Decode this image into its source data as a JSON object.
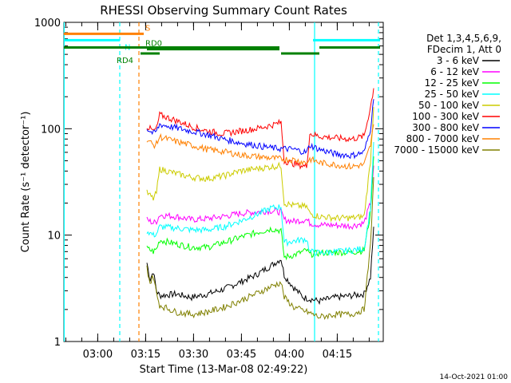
{
  "chart_data": {
    "type": "line",
    "title": "RHESSI Observing Summary Count Rates",
    "xlabel": "Start Time (13-Mar-08 02:49:22)",
    "ylabel": "Count Rate (s⁻¹ detector⁻¹)",
    "y_scale": "log",
    "ylim": [
      1,
      1000
    ],
    "xlim_minutes_after_start": [
      0,
      100
    ],
    "x_ticks": [
      {
        "label": "03:00",
        "min": 10.6
      },
      {
        "label": "03:15",
        "min": 25.6
      },
      {
        "label": "03:30",
        "min": 40.6
      },
      {
        "label": "03:45",
        "min": 55.6
      },
      {
        "label": "04:00",
        "min": 70.6
      },
      {
        "label": "04:15",
        "min": 85.6
      }
    ],
    "y_ticks": [
      {
        "label": "1",
        "value": 1
      },
      {
        "label": "10",
        "value": 10
      },
      {
        "label": "100",
        "value": 100
      },
      {
        "label": "1000",
        "value": 1000
      }
    ],
    "legend": {
      "position": "right",
      "header": [
        "Det 1,3,4,5,6,9,",
        "FDecim 1, Att 0"
      ]
    },
    "series": [
      {
        "name": "3 - 6 keV",
        "color": "#000000",
        "points": [
          [
            26,
            5.5
          ],
          [
            27,
            3.8
          ],
          [
            28,
            4.6
          ],
          [
            29,
            3
          ],
          [
            30,
            2.7
          ],
          [
            35,
            2.8
          ],
          [
            40,
            2.6
          ],
          [
            45,
            2.8
          ],
          [
            50,
            3.1
          ],
          [
            55,
            3.6
          ],
          [
            60,
            4.2
          ],
          [
            65,
            5.2
          ],
          [
            68,
            6
          ],
          [
            69,
            4.2
          ],
          [
            72,
            3.2
          ],
          [
            75,
            2.6
          ],
          [
            80,
            2.4
          ],
          [
            85,
            2.6
          ],
          [
            90,
            2.7
          ],
          [
            94,
            2.8
          ],
          [
            96,
            4
          ],
          [
            97,
            12
          ]
        ]
      },
      {
        "name": "6 - 12 keV",
        "color": "#ff00ff",
        "points": [
          [
            26,
            14
          ],
          [
            28,
            13
          ],
          [
            29,
            13.5
          ],
          [
            30,
            15.5
          ],
          [
            35,
            15
          ],
          [
            40,
            14
          ],
          [
            45,
            14.3
          ],
          [
            50,
            15
          ],
          [
            55,
            16
          ],
          [
            60,
            16.5
          ],
          [
            65,
            17
          ],
          [
            68,
            16.5
          ],
          [
            69,
            14
          ],
          [
            72,
            13.5
          ],
          [
            76,
            14
          ],
          [
            77,
            13
          ],
          [
            80,
            12.5
          ],
          [
            85,
            12.4
          ],
          [
            90,
            12.2
          ],
          [
            94,
            13
          ],
          [
            96,
            20
          ],
          [
            97,
            45
          ]
        ]
      },
      {
        "name": "12 - 25 keV",
        "color": "#00ff00",
        "points": [
          [
            26,
            7.5
          ],
          [
            28,
            7
          ],
          [
            29,
            7.4
          ],
          [
            30,
            9
          ],
          [
            35,
            8.3
          ],
          [
            40,
            7.7
          ],
          [
            45,
            7.7
          ],
          [
            50,
            8.5
          ],
          [
            55,
            9.5
          ],
          [
            60,
            10.5
          ],
          [
            65,
            11.5
          ],
          [
            68,
            11
          ],
          [
            69,
            6.2
          ],
          [
            72,
            6.5
          ],
          [
            76,
            7.2
          ],
          [
            77,
            6.6
          ],
          [
            80,
            6.8
          ],
          [
            85,
            6.9
          ],
          [
            90,
            6.9
          ],
          [
            94,
            7.2
          ],
          [
            96,
            16
          ],
          [
            97,
            55
          ]
        ]
      },
      {
        "name": "25 - 50 keV",
        "color": "#00ffff",
        "points": [
          [
            26,
            11
          ],
          [
            28,
            10
          ],
          [
            29,
            10.3
          ],
          [
            30,
            12
          ],
          [
            35,
            11.7
          ],
          [
            40,
            11.2
          ],
          [
            45,
            11.2
          ],
          [
            50,
            12
          ],
          [
            55,
            13.5
          ],
          [
            60,
            15.5
          ],
          [
            65,
            18
          ],
          [
            68,
            18.5
          ],
          [
            69,
            8.5
          ],
          [
            72,
            8.8
          ],
          [
            76,
            9.2
          ],
          [
            77,
            7
          ],
          [
            80,
            6.8
          ],
          [
            85,
            7
          ],
          [
            90,
            7.2
          ],
          [
            94,
            7.5
          ],
          [
            96,
            18
          ],
          [
            97,
            75
          ]
        ]
      },
      {
        "name": "50 - 100 keV",
        "color": "#cccc00",
        "points": [
          [
            26,
            25
          ],
          [
            28,
            22
          ],
          [
            29,
            25
          ],
          [
            30,
            42
          ],
          [
            35,
            38
          ],
          [
            40,
            35
          ],
          [
            45,
            34
          ],
          [
            50,
            36
          ],
          [
            55,
            40
          ],
          [
            60,
            42
          ],
          [
            65,
            44
          ],
          [
            68,
            45
          ],
          [
            69,
            20
          ],
          [
            72,
            19
          ],
          [
            76,
            18.5
          ],
          [
            77,
            16
          ],
          [
            80,
            15
          ],
          [
            85,
            14.5
          ],
          [
            90,
            14.5
          ],
          [
            94,
            15
          ],
          [
            96,
            50
          ],
          [
            97,
            160
          ]
        ]
      },
      {
        "name": "100 - 300 keV",
        "color": "#ff0000",
        "points": [
          [
            26,
            105
          ],
          [
            27,
            100
          ],
          [
            28,
            95
          ],
          [
            29,
            100
          ],
          [
            30,
            135
          ],
          [
            35,
            120
          ],
          [
            40,
            105
          ],
          [
            45,
            95
          ],
          [
            50,
            90
          ],
          [
            55,
            95
          ],
          [
            60,
            100
          ],
          [
            65,
            108
          ],
          [
            68,
            115
          ],
          [
            69,
            50
          ],
          [
            72,
            47
          ],
          [
            76,
            44
          ],
          [
            77,
            90
          ],
          [
            80,
            85
          ],
          [
            85,
            82
          ],
          [
            90,
            80
          ],
          [
            94,
            85
          ],
          [
            96,
            160
          ],
          [
            97,
            240
          ]
        ]
      },
      {
        "name": "300 - 800 keV",
        "color": "#0000ff",
        "points": [
          [
            26,
            100
          ],
          [
            28,
            90
          ],
          [
            29,
            95
          ],
          [
            30,
            110
          ],
          [
            35,
            102
          ],
          [
            40,
            95
          ],
          [
            45,
            88
          ],
          [
            50,
            80
          ],
          [
            55,
            74
          ],
          [
            60,
            70
          ],
          [
            65,
            66
          ],
          [
            68,
            65
          ],
          [
            69,
            65
          ],
          [
            72,
            64
          ],
          [
            76,
            60
          ],
          [
            77,
            70
          ],
          [
            80,
            64
          ],
          [
            85,
            58
          ],
          [
            90,
            56
          ],
          [
            94,
            60
          ],
          [
            96,
            100
          ],
          [
            97,
            190
          ]
        ]
      },
      {
        "name": "800 - 7000 keV",
        "color": "#ff8000",
        "points": [
          [
            26,
            80
          ],
          [
            28,
            70
          ],
          [
            29,
            72
          ],
          [
            30,
            84
          ],
          [
            35,
            76
          ],
          [
            40,
            70
          ],
          [
            45,
            64
          ],
          [
            50,
            61
          ],
          [
            55,
            57
          ],
          [
            60,
            55
          ],
          [
            65,
            53
          ],
          [
            68,
            52
          ],
          [
            69,
            52
          ],
          [
            72,
            51
          ],
          [
            76,
            48
          ],
          [
            77,
            52
          ],
          [
            80,
            48
          ],
          [
            85,
            46
          ],
          [
            90,
            44
          ],
          [
            94,
            46
          ],
          [
            96,
            70
          ],
          [
            97,
            110
          ]
        ]
      },
      {
        "name": "7000 - 15000 keV",
        "color": "#808000",
        "points": [
          [
            26,
            5
          ],
          [
            27,
            3.5
          ],
          [
            28,
            4.2
          ],
          [
            29,
            2.8
          ],
          [
            30,
            2.2
          ],
          [
            35,
            1.9
          ],
          [
            40,
            1.8
          ],
          [
            45,
            1.9
          ],
          [
            50,
            2.1
          ],
          [
            55,
            2.4
          ],
          [
            60,
            2.8
          ],
          [
            65,
            3.3
          ],
          [
            68,
            3.6
          ],
          [
            69,
            2.6
          ],
          [
            72,
            2.1
          ],
          [
            76,
            1.9
          ],
          [
            80,
            1.7
          ],
          [
            85,
            1.8
          ],
          [
            90,
            1.8
          ],
          [
            94,
            2
          ],
          [
            96,
            8
          ],
          [
            97,
            35
          ]
        ]
      }
    ],
    "state_bars": {
      "saa": {
        "label": "S",
        "color": "#ff8000",
        "value": 780,
        "segments": [
          [
            0,
            25
          ]
        ],
        "label_min": 25.5
      },
      "night": {
        "label": "N",
        "color": "#00ffff",
        "value": 680,
        "segments": [
          [
            0,
            17.5
          ],
          [
            78,
            99
          ]
        ],
        "label_min": 19
      },
      "attenuator": {
        "color": "#008000",
        "value": 580,
        "segments": [
          [
            0,
            67.5
          ],
          [
            80,
            99
          ]
        ]
      },
      "rd0": {
        "label": "RD0",
        "color": "#008000",
        "value": 560,
        "segments": [
          [
            26,
            67.5
          ]
        ],
        "label_min": 25.5
      },
      "rd4": {
        "label": "RD4",
        "color": "#008000",
        "value": 510,
        "segments": [
          [
            24,
            30
          ],
          [
            68,
            80
          ]
        ],
        "label_min": 16.5
      }
    },
    "event_lines": [
      {
        "min": 0.1,
        "color": "#00ffff",
        "dashed": false
      },
      {
        "min": 17.5,
        "color": "#00ffff",
        "dashed": true
      },
      {
        "min": 23.5,
        "color": "#ff8000",
        "dashed": true
      },
      {
        "min": 78.5,
        "color": "#00ffff",
        "dashed": false
      },
      {
        "min": 98.5,
        "color": "#00ffff",
        "dashed": true
      }
    ],
    "grid": false
  },
  "footer": {
    "timestamp": "14-Oct-2021 01:00"
  }
}
